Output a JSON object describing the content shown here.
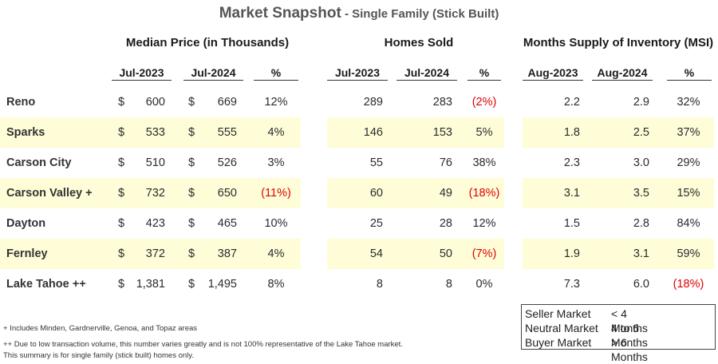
{
  "title": {
    "main": "Market Snapshot",
    "sub": " - Single Family (Stick Built)"
  },
  "groups": {
    "median": "Median Price (in Thousands)",
    "sold": "Homes Sold",
    "msi": "Months Supply of Inventory (MSI)"
  },
  "columns": {
    "median": [
      "Jul-2023",
      "Jul-2024",
      "%"
    ],
    "sold": [
      "Jul-2023",
      "Jul-2024",
      "%"
    ],
    "msi": [
      "Aug-2023",
      "Aug-2024",
      "%"
    ]
  },
  "currency_symbol": "$",
  "rows": [
    {
      "city": "Reno",
      "m1": "600",
      "m2": "669",
      "mp": "12%",
      "s1": "289",
      "s2": "283",
      "sp": "(2%)",
      "i1": "2.2",
      "i2": "2.9",
      "ip": "32%"
    },
    {
      "city": "Sparks",
      "m1": "533",
      "m2": "555",
      "mp": "4%",
      "s1": "146",
      "s2": "153",
      "sp": "5%",
      "i1": "1.8",
      "i2": "2.5",
      "ip": "37%"
    },
    {
      "city": "Carson City",
      "m1": "510",
      "m2": "526",
      "mp": "3%",
      "s1": "55",
      "s2": "76",
      "sp": "38%",
      "i1": "2.3",
      "i2": "3.0",
      "ip": "29%"
    },
    {
      "city": "Carson Valley +",
      "m1": "732",
      "m2": "650",
      "mp": "(11%)",
      "s1": "60",
      "s2": "49",
      "sp": "(18%)",
      "i1": "3.1",
      "i2": "3.5",
      "ip": "15%"
    },
    {
      "city": "Dayton",
      "m1": "423",
      "m2": "465",
      "mp": "10%",
      "s1": "25",
      "s2": "28",
      "sp": "12%",
      "i1": "1.5",
      "i2": "2.8",
      "ip": "84%"
    },
    {
      "city": "Fernley",
      "m1": "372",
      "m2": "387",
      "mp": "4%",
      "s1": "54",
      "s2": "50",
      "sp": "(7%)",
      "i1": "1.9",
      "i2": "3.1",
      "ip": "59%"
    },
    {
      "city": "Lake Tahoe ++",
      "m1": "1,381",
      "m2": "1,495",
      "mp": "8%",
      "s1": "8",
      "s2": "8",
      "sp": "0%",
      "i1": "7.3",
      "i2": "6.0",
      "ip": "(18%)"
    }
  ],
  "notes": [
    "+ Includes Minden, Gardnerville, Genoa, and Topaz areas",
    "++ Due to low transaction volume, this number varies greatly and is not 100% representative of the Lake Tahoe market.",
    "This summary is for single family (stick built) homes only."
  ],
  "legend": [
    {
      "label": "Seller Market",
      "range": "< 4 Months"
    },
    {
      "label": "Neutral Market",
      "range": "4 to 6 Months"
    },
    {
      "label": "Buyer Market",
      "range": "> 6  Months"
    }
  ],
  "colors": {
    "band": "#fefdd8",
    "negative": "#e00000"
  }
}
